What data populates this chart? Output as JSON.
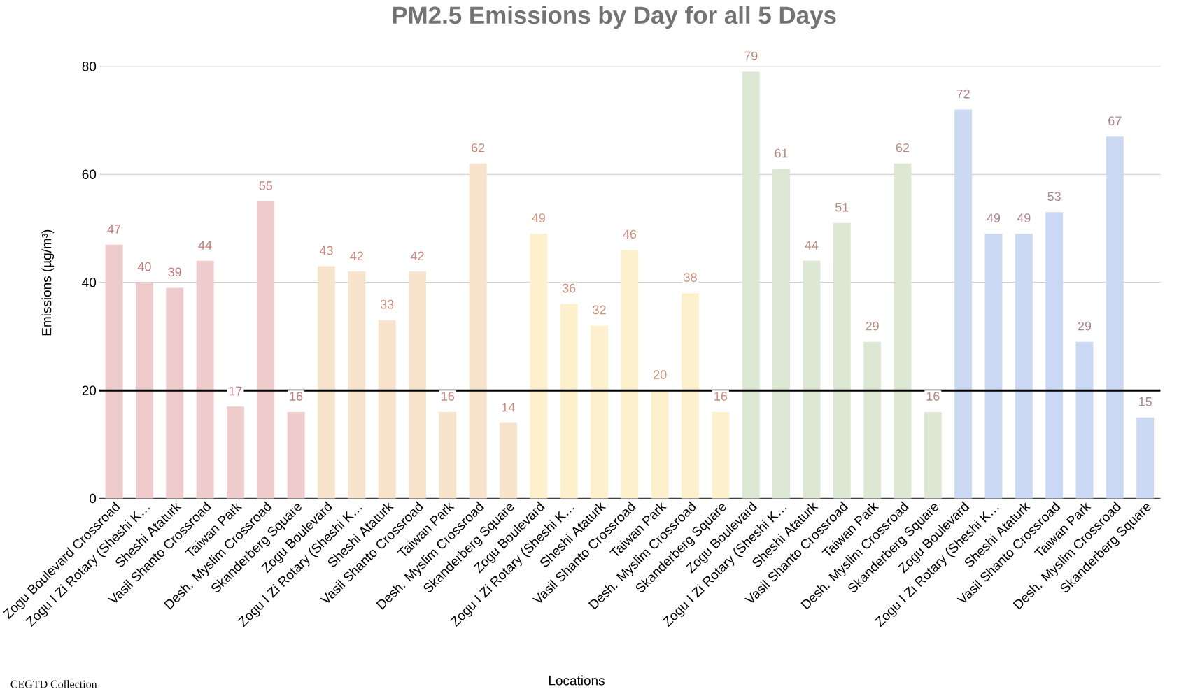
{
  "chart_data": {
    "type": "bar",
    "title": "PM2.5 Emissions by Day for all 5 Days",
    "xlabel": "Locations",
    "ylabel": "Emissions (µg/m³)",
    "categories": [
      "Zogu Boulevard Crossroad",
      "Zogu I Zi Rotary (Sheshi K…",
      "Sheshi Ataturk",
      "Vasil Shanto Crossroad",
      "Taiwan Park",
      "Desh. Myslim Crossroad",
      "Skanderberg Square",
      "Zogu Boulevard",
      "Zogu I Zi Rotary (Sheshi K…",
      "Sheshi Ataturk",
      "Vasil Shanto Crossroad",
      "Taiwan Park",
      "Desh. Myslim Crossroad",
      "Skanderberg Square",
      "Zogu Boulevard",
      "Zogu I Zi Rotary (Sheshi K…",
      "Sheshi Ataturk",
      "Vasil Shanto Crossroad",
      "Taiwan Park",
      "Desh. Myslim Crossroad",
      "Skanderberg Square",
      "Zogu Boulevard",
      "Zogu I Zi Rotary (Sheshi K…",
      "Sheshi Ataturk",
      "Vasil Shanto Crossroad",
      "Taiwan Park",
      "Desh. Myslim Crossroad",
      "Skanderberg Square",
      "Zogu Boulevard",
      "Zogu I Zi Rotary (Sheshi K…",
      "Sheshi Ataturk",
      "Vasil Shanto Crossroad",
      "Taiwan Park",
      "Desh. Myslim Crossroad",
      "Skanderberg Square"
    ],
    "values": [
      47,
      40,
      39,
      44,
      17,
      55,
      16,
      43,
      42,
      33,
      42,
      16,
      62,
      14,
      49,
      36,
      32,
      46,
      20,
      38,
      16,
      79,
      61,
      44,
      51,
      29,
      62,
      16,
      72,
      49,
      49,
      53,
      29,
      67,
      15
    ],
    "colors": [
      "#eecccc",
      "#eecccc",
      "#eecccc",
      "#eecccc",
      "#eecccc",
      "#eecccc",
      "#eecccc",
      "#f8e4cd",
      "#f8e4cd",
      "#f8e4cd",
      "#f8e4cd",
      "#f8e4cd",
      "#f8e4cd",
      "#f8e4cd",
      "#fdf1cd",
      "#fdf1cd",
      "#fdf1cd",
      "#fdf1cd",
      "#fdf1cd",
      "#fdf1cd",
      "#fdf1cd",
      "#dde8d4",
      "#dde8d4",
      "#dde8d4",
      "#dde8d4",
      "#dde8d4",
      "#dde8d4",
      "#dde8d4",
      "#cbd9f5",
      "#cbd9f5",
      "#cbd9f5",
      "#cbd9f5",
      "#cbd9f5",
      "#cbd9f5",
      "#cbd9f5"
    ],
    "data_labels": true,
    "ylim": [
      0,
      80
    ],
    "yticks": [
      0,
      20,
      40,
      60,
      80
    ],
    "grid": "y",
    "ref_lines": [
      {
        "axis": "y",
        "value": 20,
        "color": "#000000"
      }
    ],
    "annotations": [
      "CEGTD Collection"
    ]
  }
}
